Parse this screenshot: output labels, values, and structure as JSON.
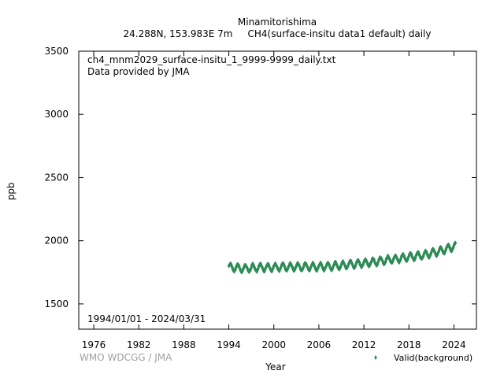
{
  "chart_data": {
    "type": "scatter",
    "title": "Minamitorishima",
    "subtitle": "24.288N, 153.983E 7m     CH4(surface-insitu data1 default) daily",
    "xlabel": "Year",
    "ylabel": "ppb",
    "xlim": [
      1974,
      2027
    ],
    "ylim": [
      1300,
      3500
    ],
    "xticks": [
      1976,
      1982,
      1988,
      1994,
      2000,
      2006,
      2012,
      2018,
      2024
    ],
    "yticks": [
      1500,
      2000,
      2500,
      3000,
      3500
    ],
    "file_label": "ch4_mnm2029_surface-insitu_1_9999-9999_daily.txt",
    "provider_label": "Data provided by JMA",
    "period_label": "1994/01/01 - 2024/03/31",
    "credit": "WMO WDCGG / JMA",
    "legend_position": "bottom-right",
    "series": [
      {
        "name": "Valid(background)",
        "color": "#2e8b57",
        "x_range": [
          1994.0,
          2024.25
        ],
        "trend_years": [
          1994,
          1996,
          1998,
          2000,
          2002,
          2004,
          2006,
          2008,
          2010,
          2012,
          2014,
          2016,
          2018,
          2020,
          2022,
          2024.25
        ],
        "trend_values": [
          1792,
          1780,
          1788,
          1790,
          1792,
          1795,
          1793,
          1800,
          1812,
          1822,
          1838,
          1855,
          1870,
          1888,
          1915,
          1960
        ],
        "seasonal_amplitude": 27,
        "scatter_band": 10
      }
    ]
  }
}
